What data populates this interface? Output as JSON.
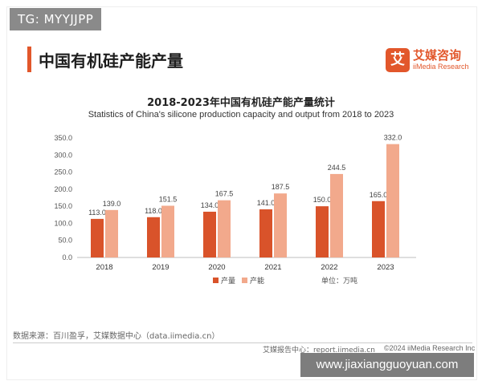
{
  "tag": "TG: MYYJJPP",
  "page_title": "中国有机硅产能产量",
  "logo": {
    "icon_char": "艾",
    "name_cn": "艾媒咨询",
    "name_en": "iiMedia Research"
  },
  "source_note": "数据来源：百川盈孚，艾媒数据中心（data.iimedia.cn）",
  "footer": {
    "left": "艾媒报告中心：report.iimedia.cn",
    "right": "©2024  iiMedia Research Inc"
  },
  "watermark": "www.jiaxiangguoyuan.com",
  "colors": {
    "output": "#d9532a",
    "capacity": "#f2a98c",
    "accent": "#e2572b"
  },
  "chart_data": {
    "type": "bar",
    "title": "2018-2023年中国有机硅产能产量统计",
    "subtitle": "Statistics of China's silicone production capacity and output from 2018 to 2023",
    "categories": [
      "2018",
      "2019",
      "2020",
      "2021",
      "2022",
      "2023"
    ],
    "series": [
      {
        "name": "产量",
        "values": [
          113.0,
          118.0,
          134.0,
          141.0,
          150.0,
          165.0
        ]
      },
      {
        "name": "产能",
        "values": [
          139.0,
          151.5,
          167.5,
          187.5,
          244.5,
          332.0
        ]
      }
    ],
    "ylim": [
      0,
      350
    ],
    "yticks": [
      "0.0",
      "50.0",
      "100.0",
      "150.0",
      "200.0",
      "250.0",
      "300.0",
      "350.0"
    ],
    "unit_label": "单位：万吨",
    "legend_position": "bottom",
    "grid": false
  }
}
